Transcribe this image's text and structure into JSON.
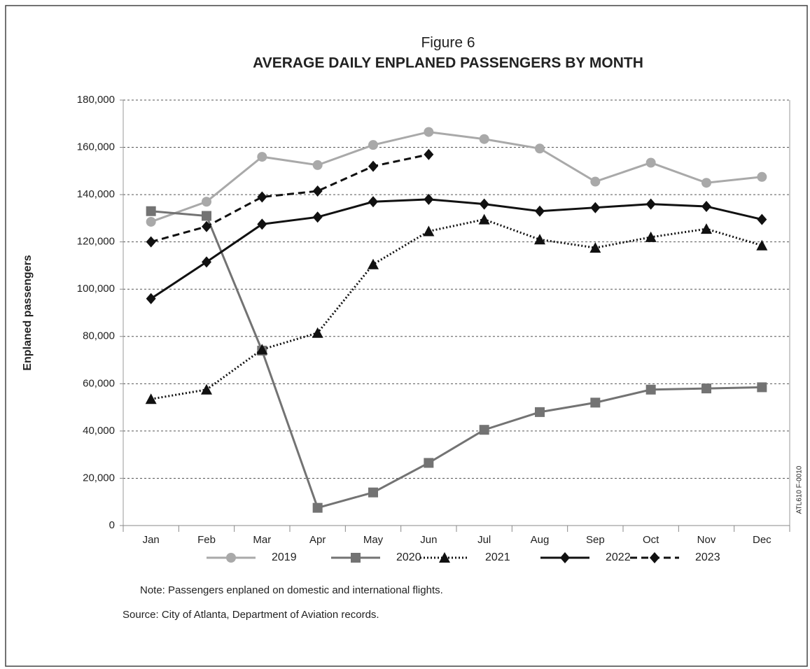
{
  "chart_data": {
    "type": "line",
    "title": "Figure 6",
    "subtitle": "AVERAGE DAILY ENPLANED PASSENGERS BY MONTH",
    "y_label": "Enplaned passengers",
    "side_label": "ATL610 F-0010",
    "note": "Note:  Passengers enplaned on domestic and international flights.",
    "source": "Source:  City of Atlanta, Department of Aviation records.",
    "categories": [
      "Jan",
      "Feb",
      "Mar",
      "Apr",
      "May",
      "Jun",
      "Jul",
      "Aug",
      "Sep",
      "Oct",
      "Nov",
      "Dec"
    ],
    "ylim": [
      0,
      180000
    ],
    "yticks": [
      0,
      {
        "value": 20000,
        "label": "20,000"
      },
      {
        "value": 40000,
        "label": "40,000"
      },
      {
        "value": 60000,
        "label": "60,000"
      },
      {
        "value": 80000,
        "label": "80,000"
      },
      {
        "value": 100000,
        "label": "100,000"
      },
      {
        "value": 120000,
        "label": "120,000"
      },
      {
        "value": 140000,
        "label": "140,000"
      },
      {
        "value": 160000,
        "label": "160,000"
      },
      {
        "value": 180000,
        "label": "180,000"
      }
    ],
    "grid": true,
    "legend": "bottom",
    "series": [
      {
        "name": "2019",
        "color": "#a9a9a9",
        "marker": "circle",
        "dash": "solid",
        "values": [
          128500,
          137000,
          156000,
          152500,
          161000,
          166500,
          163500,
          159500,
          145500,
          153500,
          145000,
          147500
        ]
      },
      {
        "name": "2020",
        "color": "#737373",
        "marker": "square",
        "dash": "solid",
        "values": [
          133000,
          131000,
          74000,
          7500,
          14000,
          26500,
          40500,
          48000,
          52000,
          57500,
          58000,
          58500
        ]
      },
      {
        "name": "2021",
        "color": "#111111",
        "marker": "triangle",
        "dash": "dotted",
        "values": [
          53500,
          57500,
          74500,
          81500,
          110500,
          124500,
          129500,
          121000,
          117500,
          122000,
          125500,
          118500
        ]
      },
      {
        "name": "2022",
        "color": "#111111",
        "marker": "diamond",
        "dash": "solid",
        "values": [
          96000,
          111500,
          127500,
          130500,
          137000,
          138000,
          136000,
          133000,
          134500,
          136000,
          135000,
          129500
        ]
      },
      {
        "name": "2023",
        "color": "#111111",
        "marker": "diamond",
        "dash": "dashed",
        "values": [
          120000,
          126500,
          139000,
          141500,
          152000,
          157000,
          null,
          null,
          null,
          null,
          null,
          null
        ]
      }
    ]
  }
}
